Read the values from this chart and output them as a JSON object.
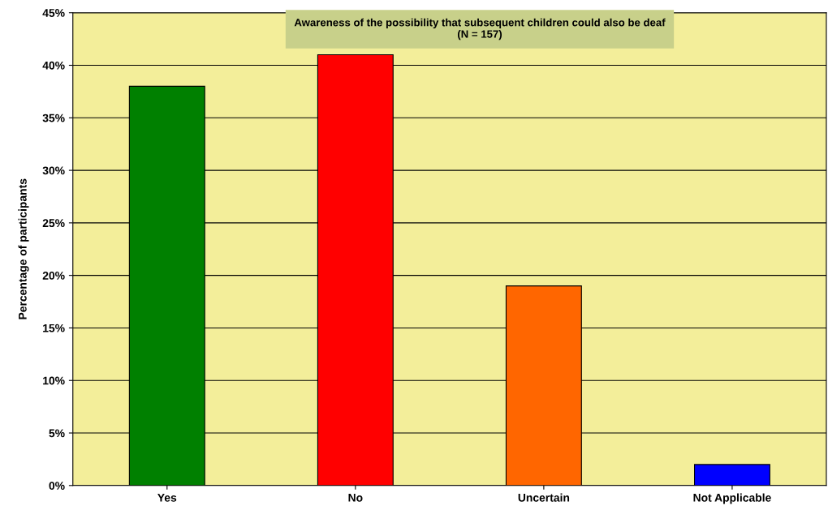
{
  "chart_data": {
    "type": "bar",
    "title": "Awareness of the possibility that subsequent children could also be deaf\n(N = 157)",
    "ylabel": "Percentage of participants",
    "categories": [
      "Yes",
      "No",
      "Uncertain",
      "Not Applicable"
    ],
    "values": [
      38,
      41,
      19,
      2
    ],
    "colors": [
      "#008000",
      "#ff0000",
      "#ff6600",
      "#0000ff"
    ],
    "ylim": [
      0,
      45
    ],
    "yticks": [
      {
        "value": 0,
        "label": "0%"
      },
      {
        "value": 5,
        "label": "5%"
      },
      {
        "value": 10,
        "label": "10%"
      },
      {
        "value": 15,
        "label": "15%"
      },
      {
        "value": 20,
        "label": "20%"
      },
      {
        "value": 25,
        "label": "25%"
      },
      {
        "value": 30,
        "label": "30%"
      },
      {
        "value": 35,
        "label": "35%"
      },
      {
        "value": 40,
        "label": "40%"
      },
      {
        "value": 45,
        "label": "45%"
      }
    ],
    "grid": "y",
    "legend": false
  }
}
